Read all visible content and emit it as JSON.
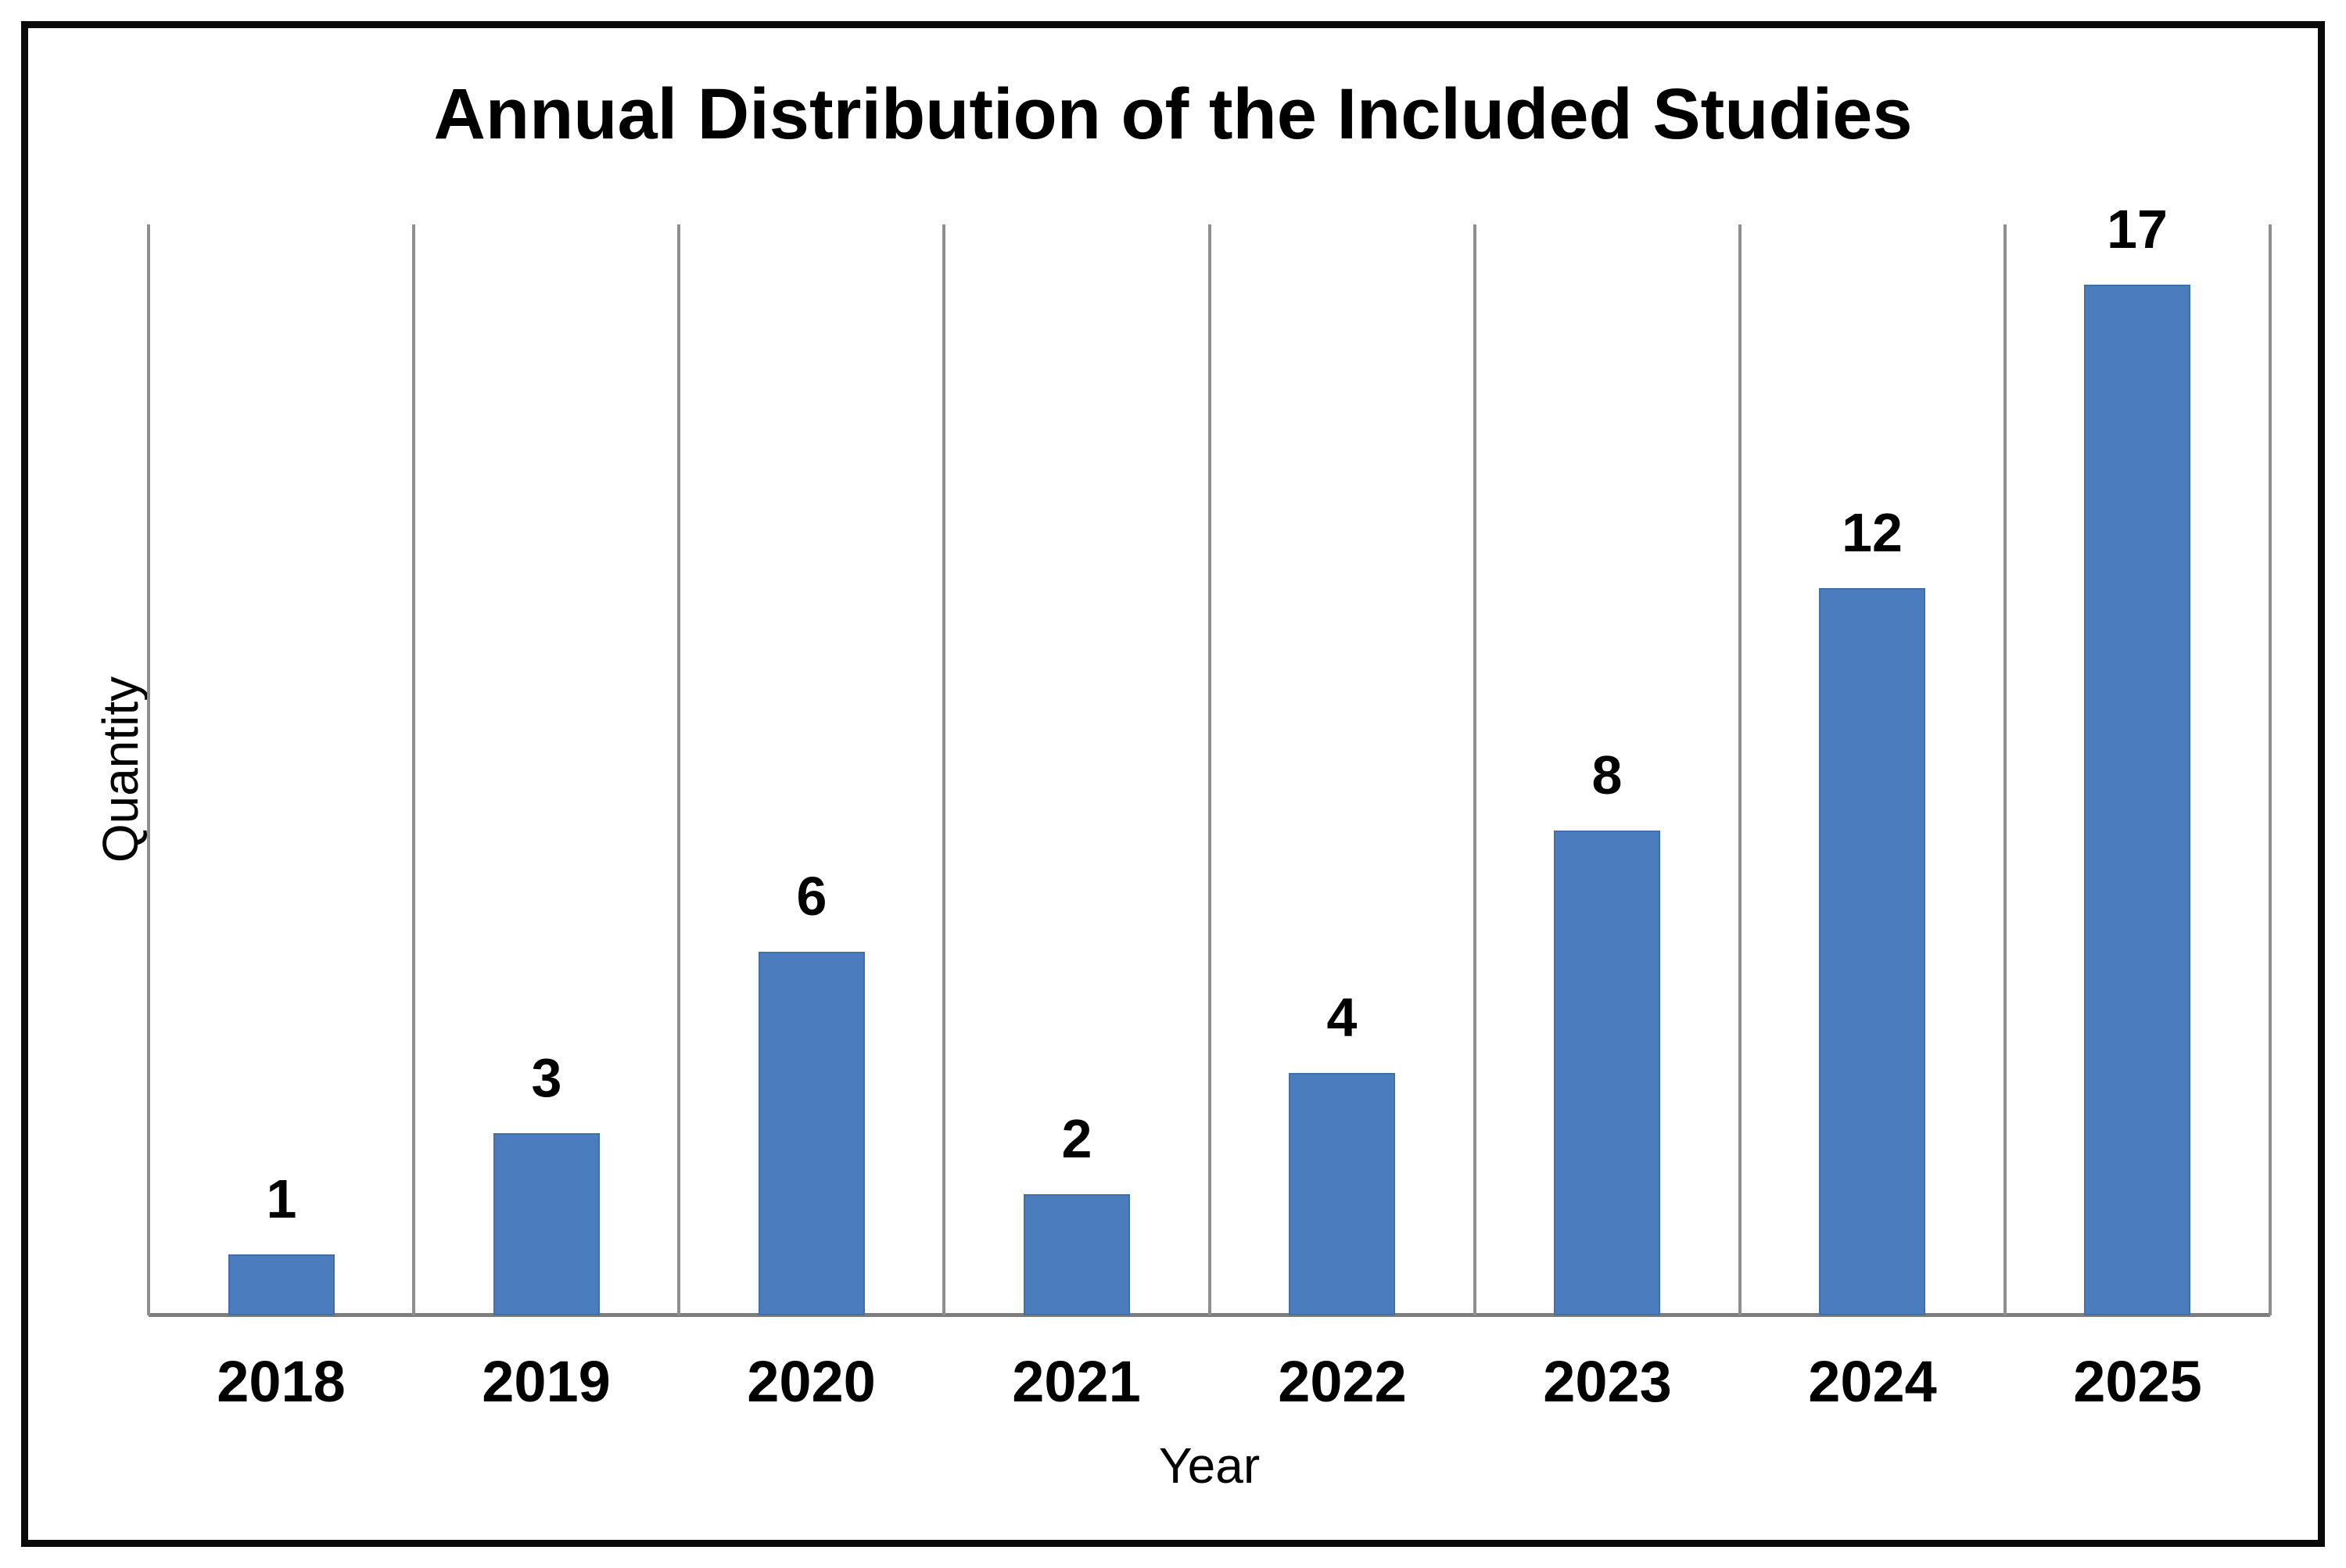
{
  "figure": {
    "title": "Annual Distribution of the Included Studies",
    "xlabel": "Year",
    "ylabel": "Quantity"
  },
  "chart_data": {
    "type": "bar",
    "title": "Annual Distribution of the Included Studies",
    "categories": [
      "2018",
      "2019",
      "2020",
      "2021",
      "2022",
      "2023",
      "2024",
      "2025"
    ],
    "values": [
      1,
      3,
      6,
      2,
      4,
      8,
      12,
      17
    ],
    "xlabel": "Year",
    "ylabel": "Quantity",
    "ylim": [
      0,
      18
    ],
    "grid": "vertical-category-boundaries",
    "legend": "none",
    "data_labels": true,
    "colors": {
      "bar": "#4b7dbe",
      "bar_border": "#416fa6",
      "gridline": "#8e8e8e",
      "axis_line": "#7d7d7d",
      "text": "#000000",
      "frame_border": "#0a0a0a",
      "background": "#ffffff"
    }
  }
}
